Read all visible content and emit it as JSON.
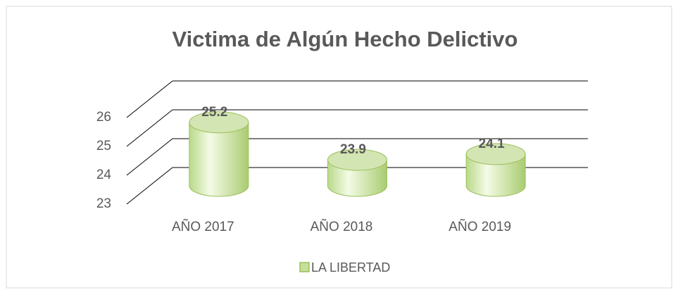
{
  "chart_data": {
    "type": "bar",
    "title": "Victima de Algún Hecho Delictivo",
    "categories": [
      "AÑO 2017",
      "AÑO 2018",
      "AÑO 2019"
    ],
    "series": [
      {
        "name": "LA LIBERTAD",
        "color": "#c5e09a",
        "values": [
          25.2,
          23.9,
          24.1
        ]
      }
    ],
    "ylim": [
      23,
      26
    ],
    "yticks": [
      23,
      24,
      25,
      26
    ],
    "grid": true
  }
}
